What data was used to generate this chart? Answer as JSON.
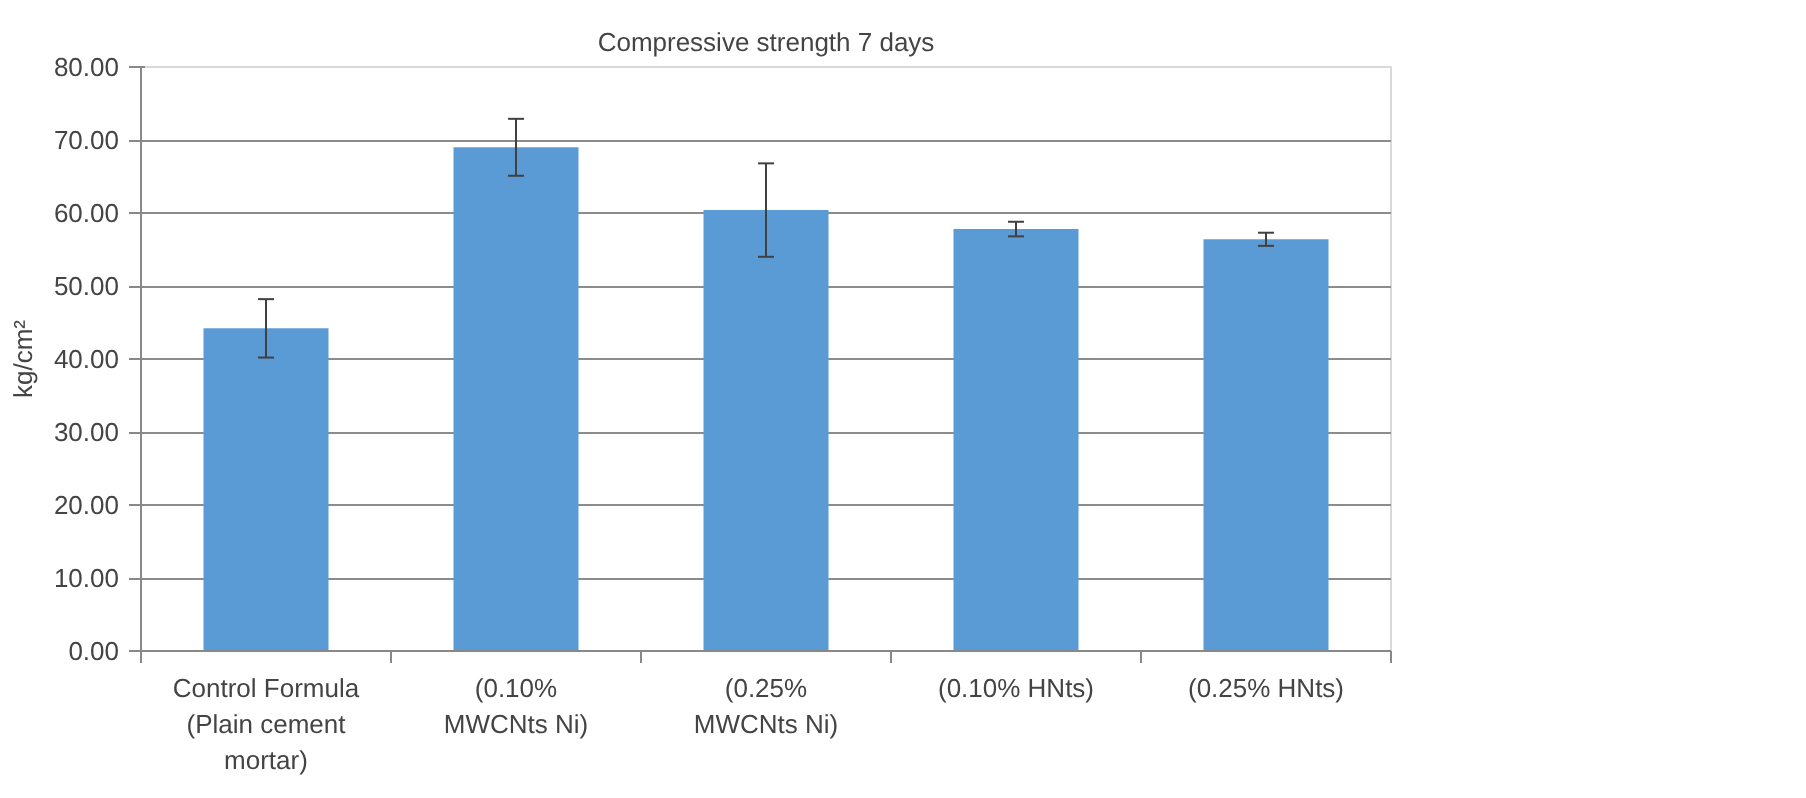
{
  "chart_data": {
    "type": "bar",
    "title": "Compressive strength 7 days",
    "ylabel": "kg/cm²",
    "categories": [
      "Control Formula\n(Plain cement\nmortar)",
      "(0.10%\nMWCNts Ni)",
      "(0.25%\nMWCNts Ni)",
      "(0.10% HNts)",
      "(0.25% HNts)"
    ],
    "values": [
      44.2,
      69.0,
      60.4,
      57.8,
      56.4
    ],
    "errors": [
      4.0,
      3.9,
      6.4,
      1.0,
      0.9
    ],
    "color": "#5b9bd5",
    "ylim": [
      0,
      80
    ],
    "yticks": [
      {
        "value": 0,
        "label": "0.00"
      },
      {
        "value": 10,
        "label": "10.00"
      },
      {
        "value": 20,
        "label": "20.00"
      },
      {
        "value": 30,
        "label": "30.00"
      },
      {
        "value": 40,
        "label": "40.00"
      },
      {
        "value": 50,
        "label": "50.00"
      },
      {
        "value": 60,
        "label": "60.00"
      },
      {
        "value": 70,
        "label": "70.00"
      },
      {
        "value": 80,
        "label": "80.00"
      }
    ],
    "grid": "y"
  }
}
